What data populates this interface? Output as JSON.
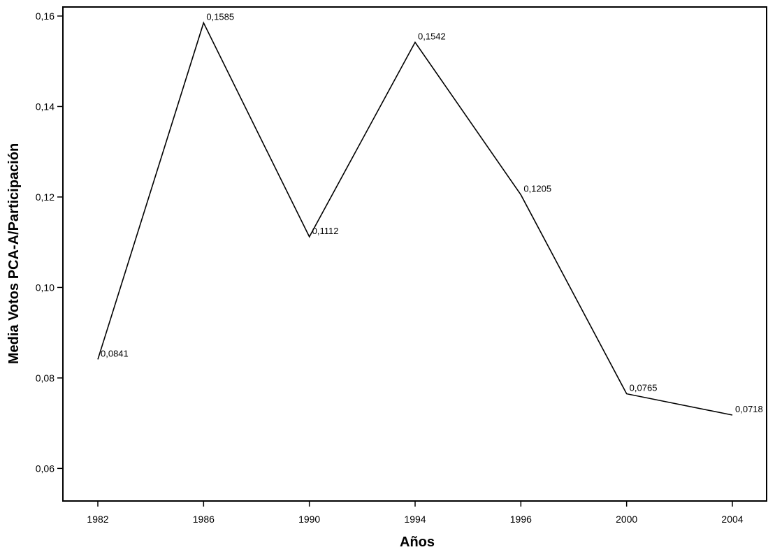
{
  "chart_data": {
    "type": "line",
    "title": "",
    "xlabel": "Años",
    "ylabel": "Media Votos PCA-A/Participación",
    "categories": [
      "1982",
      "1986",
      "1990",
      "1994",
      "1996",
      "2000",
      "2004"
    ],
    "series": [
      {
        "values": [
          0.0841,
          0.1585,
          0.1112,
          0.1542,
          0.1205,
          0.0765,
          0.0718
        ],
        "data_labels": [
          "0,0841",
          "0,1585",
          "0,1112",
          "0,1542",
          "0,1205",
          "0,0765",
          "0,0718"
        ],
        "color": "#000000"
      }
    ],
    "yticks": [
      0.06,
      0.08,
      0.1,
      0.12,
      0.14,
      0.16
    ],
    "ytick_labels": [
      "0,06",
      "0,08",
      "0,10",
      "0,12",
      "0,14",
      "0,16"
    ],
    "ylim": [
      0.0528,
      0.162
    ],
    "grid": false,
    "legend": "none"
  }
}
